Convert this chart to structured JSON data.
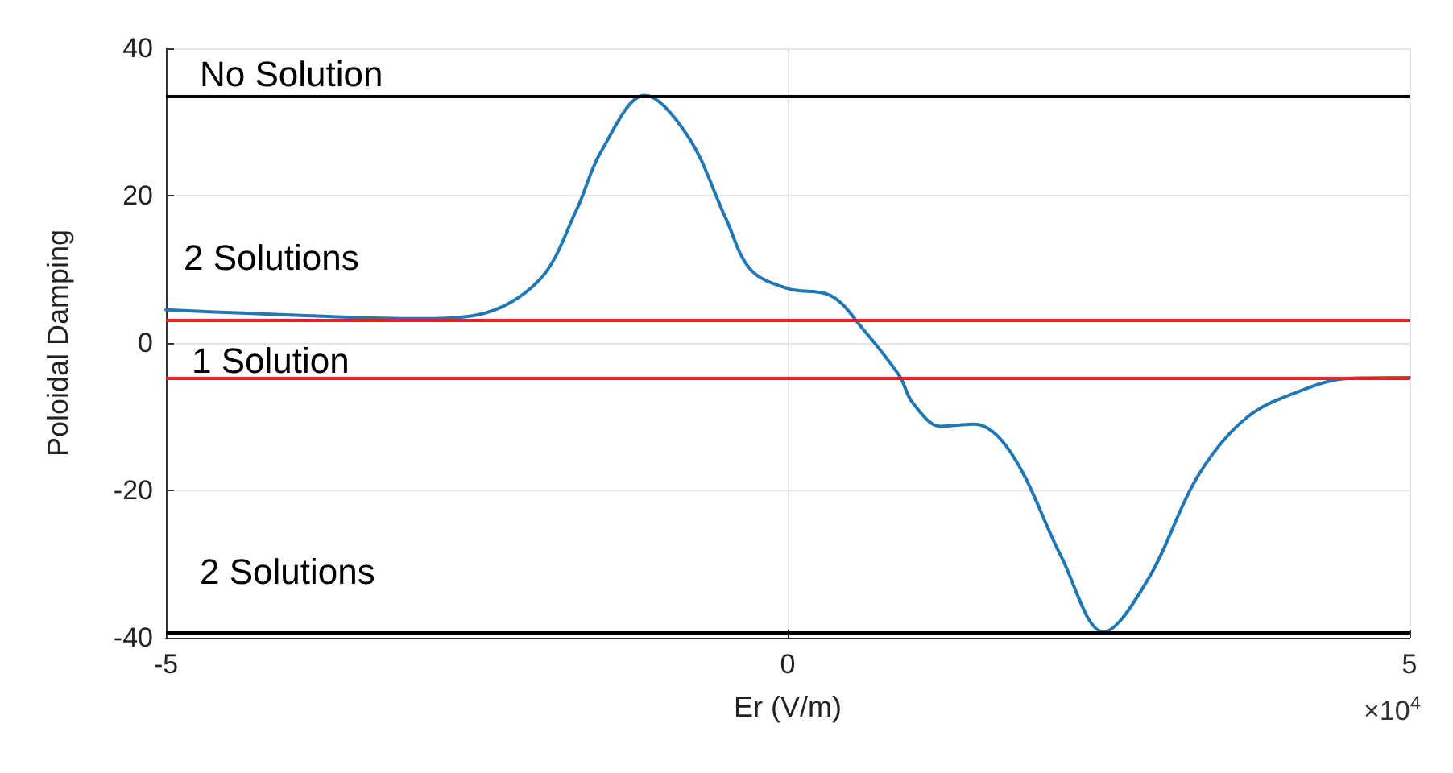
{
  "chart_data": {
    "type": "line",
    "xlabel": "Er (V/m)",
    "ylabel": "Poloidal Damping",
    "x": [
      -5,
      -4,
      -3,
      -2.5,
      -2,
      -1.7,
      -1.5,
      -1.15,
      -0.8,
      -0.5,
      -0.3,
      0,
      0.35,
      0.6,
      0.9,
      1,
      1.23,
      1.5,
      1.8,
      2.2,
      2.54,
      2.9,
      3.3,
      3.7,
      4.2,
      4.5,
      5
    ],
    "series": [
      {
        "color": "#1f77b4",
        "values": [
          4.5,
          3.8,
          3.3,
          3.8,
          8.5,
          18,
          26,
          33.6,
          28,
          17,
          10,
          7.4,
          6.4,
          2,
          -4.5,
          -8,
          -11.3,
          -11,
          -15,
          -29,
          -39.2,
          -32,
          -18,
          -10,
          -6,
          -4.8,
          -4.7
        ]
      }
    ],
    "xlim": [
      -5,
      5
    ],
    "xticks": [
      -5,
      0,
      5
    ],
    "ylim": [
      -40,
      40
    ],
    "yticks": [
      -40,
      -20,
      0,
      20,
      40
    ],
    "grid": true,
    "marker": "none",
    "line_style": "solid",
    "ref_lines": [
      {
        "axis": "y",
        "value": 33.6,
        "color": "#000000"
      },
      {
        "axis": "y",
        "value": 3.1,
        "color": "#e8201e"
      },
      {
        "axis": "y",
        "value": -4.7,
        "color": "#e8201e"
      },
      {
        "axis": "y",
        "value": -39.2,
        "color": "#000000"
      }
    ],
    "annotations": [
      "No Solution",
      "2 Solutions",
      "1 Solution",
      "2 Solutions",
      "×10$^{4}$"
    ]
  }
}
